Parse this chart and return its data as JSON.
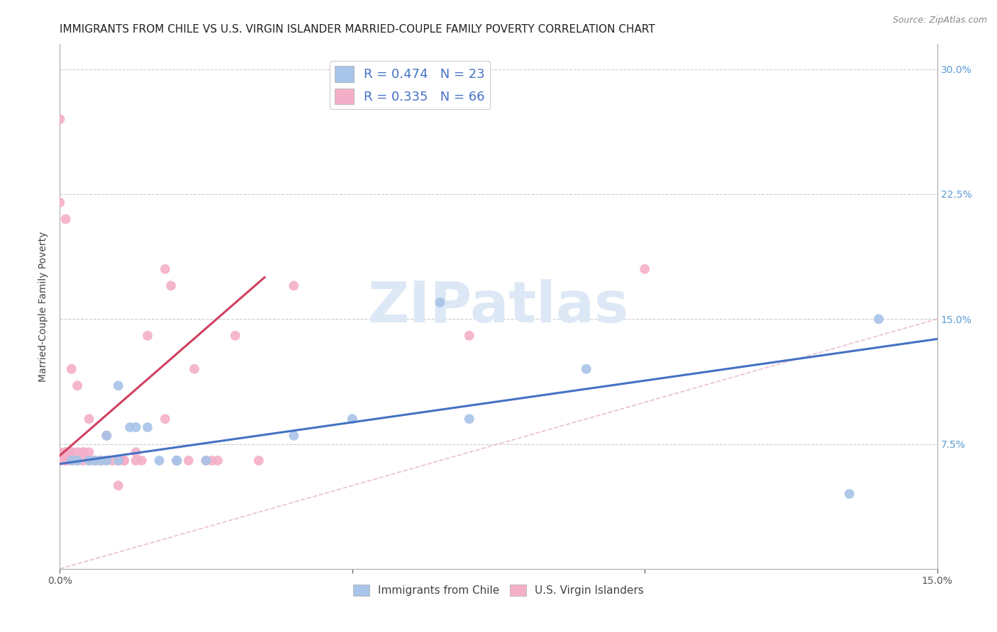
{
  "title": "IMMIGRANTS FROM CHILE VS U.S. VIRGIN ISLANDER MARRIED-COUPLE FAMILY POVERTY CORRELATION CHART",
  "source": "Source: ZipAtlas.com",
  "ylabel": "Married-Couple Family Poverty",
  "xlim": [
    0.0,
    0.15
  ],
  "ylim": [
    0.0,
    0.315
  ],
  "ytick_positions": [
    0.075,
    0.15,
    0.225,
    0.3
  ],
  "ytick_labels": [
    "7.5%",
    "15.0%",
    "22.5%",
    "30.0%"
  ],
  "xtick_positions": [
    0.0,
    0.05,
    0.1,
    0.15
  ],
  "xtick_labels": [
    "0.0%",
    "",
    "",
    "15.0%"
  ],
  "blue_R": 0.474,
  "blue_N": 23,
  "pink_R": 0.335,
  "pink_N": 66,
  "blue_scatter_color": "#a8c4e8",
  "pink_scatter_color": "#f4afc8",
  "blue_line_color": "#4472c4",
  "pink_line_color": "#d04060",
  "diagonal_color": "#e8b8c8",
  "watermark_text": "ZIPatlas",
  "watermark_color": "#dce8f5",
  "blue_scatter_x": [
    0.002,
    0.003,
    0.005,
    0.006,
    0.007,
    0.008,
    0.008,
    0.01,
    0.01,
    0.012,
    0.013,
    0.015,
    0.017,
    0.02,
    0.02,
    0.025,
    0.04,
    0.05,
    0.065,
    0.07,
    0.09,
    0.135,
    0.14
  ],
  "blue_scatter_y": [
    0.065,
    0.065,
    0.065,
    0.065,
    0.065,
    0.08,
    0.065,
    0.11,
    0.065,
    0.085,
    0.085,
    0.085,
    0.065,
    0.065,
    0.065,
    0.065,
    0.08,
    0.09,
    0.16,
    0.09,
    0.12,
    0.045,
    0.15
  ],
  "pink_scatter_x": [
    0.0,
    0.0,
    0.0,
    0.0,
    0.0,
    0.001,
    0.001,
    0.001,
    0.001,
    0.001,
    0.001,
    0.001,
    0.001,
    0.002,
    0.002,
    0.002,
    0.002,
    0.002,
    0.002,
    0.002,
    0.003,
    0.003,
    0.003,
    0.003,
    0.003,
    0.004,
    0.004,
    0.004,
    0.005,
    0.005,
    0.005,
    0.005,
    0.006,
    0.006,
    0.006,
    0.007,
    0.007,
    0.008,
    0.008,
    0.009,
    0.01,
    0.01,
    0.01,
    0.01,
    0.011,
    0.011,
    0.013,
    0.013,
    0.014,
    0.015,
    0.018,
    0.018,
    0.019,
    0.02,
    0.02,
    0.022,
    0.023,
    0.025,
    0.026,
    0.027,
    0.03,
    0.034,
    0.04,
    0.07,
    0.1,
    0.0
  ],
  "pink_scatter_y": [
    0.065,
    0.065,
    0.065,
    0.07,
    0.27,
    0.065,
    0.065,
    0.065,
    0.065,
    0.065,
    0.07,
    0.07,
    0.21,
    0.065,
    0.065,
    0.065,
    0.065,
    0.07,
    0.07,
    0.12,
    0.065,
    0.065,
    0.065,
    0.07,
    0.11,
    0.065,
    0.07,
    0.07,
    0.065,
    0.065,
    0.07,
    0.09,
    0.065,
    0.065,
    0.065,
    0.065,
    0.065,
    0.065,
    0.08,
    0.065,
    0.065,
    0.065,
    0.065,
    0.05,
    0.065,
    0.065,
    0.065,
    0.07,
    0.065,
    0.14,
    0.09,
    0.18,
    0.17,
    0.065,
    0.065,
    0.065,
    0.12,
    0.065,
    0.065,
    0.065,
    0.14,
    0.065,
    0.17,
    0.14,
    0.18,
    0.22
  ],
  "blue_line_x": [
    0.0,
    0.15
  ],
  "blue_line_y": [
    0.063,
    0.138
  ],
  "pink_line_x": [
    0.0,
    0.035
  ],
  "pink_line_y": [
    0.068,
    0.175
  ],
  "legend_labels": [
    "Immigrants from Chile",
    "U.S. Virgin Islanders"
  ],
  "title_fontsize": 11,
  "source_fontsize": 9,
  "label_fontsize": 10,
  "tick_fontsize": 10,
  "legend_fontsize": 13
}
